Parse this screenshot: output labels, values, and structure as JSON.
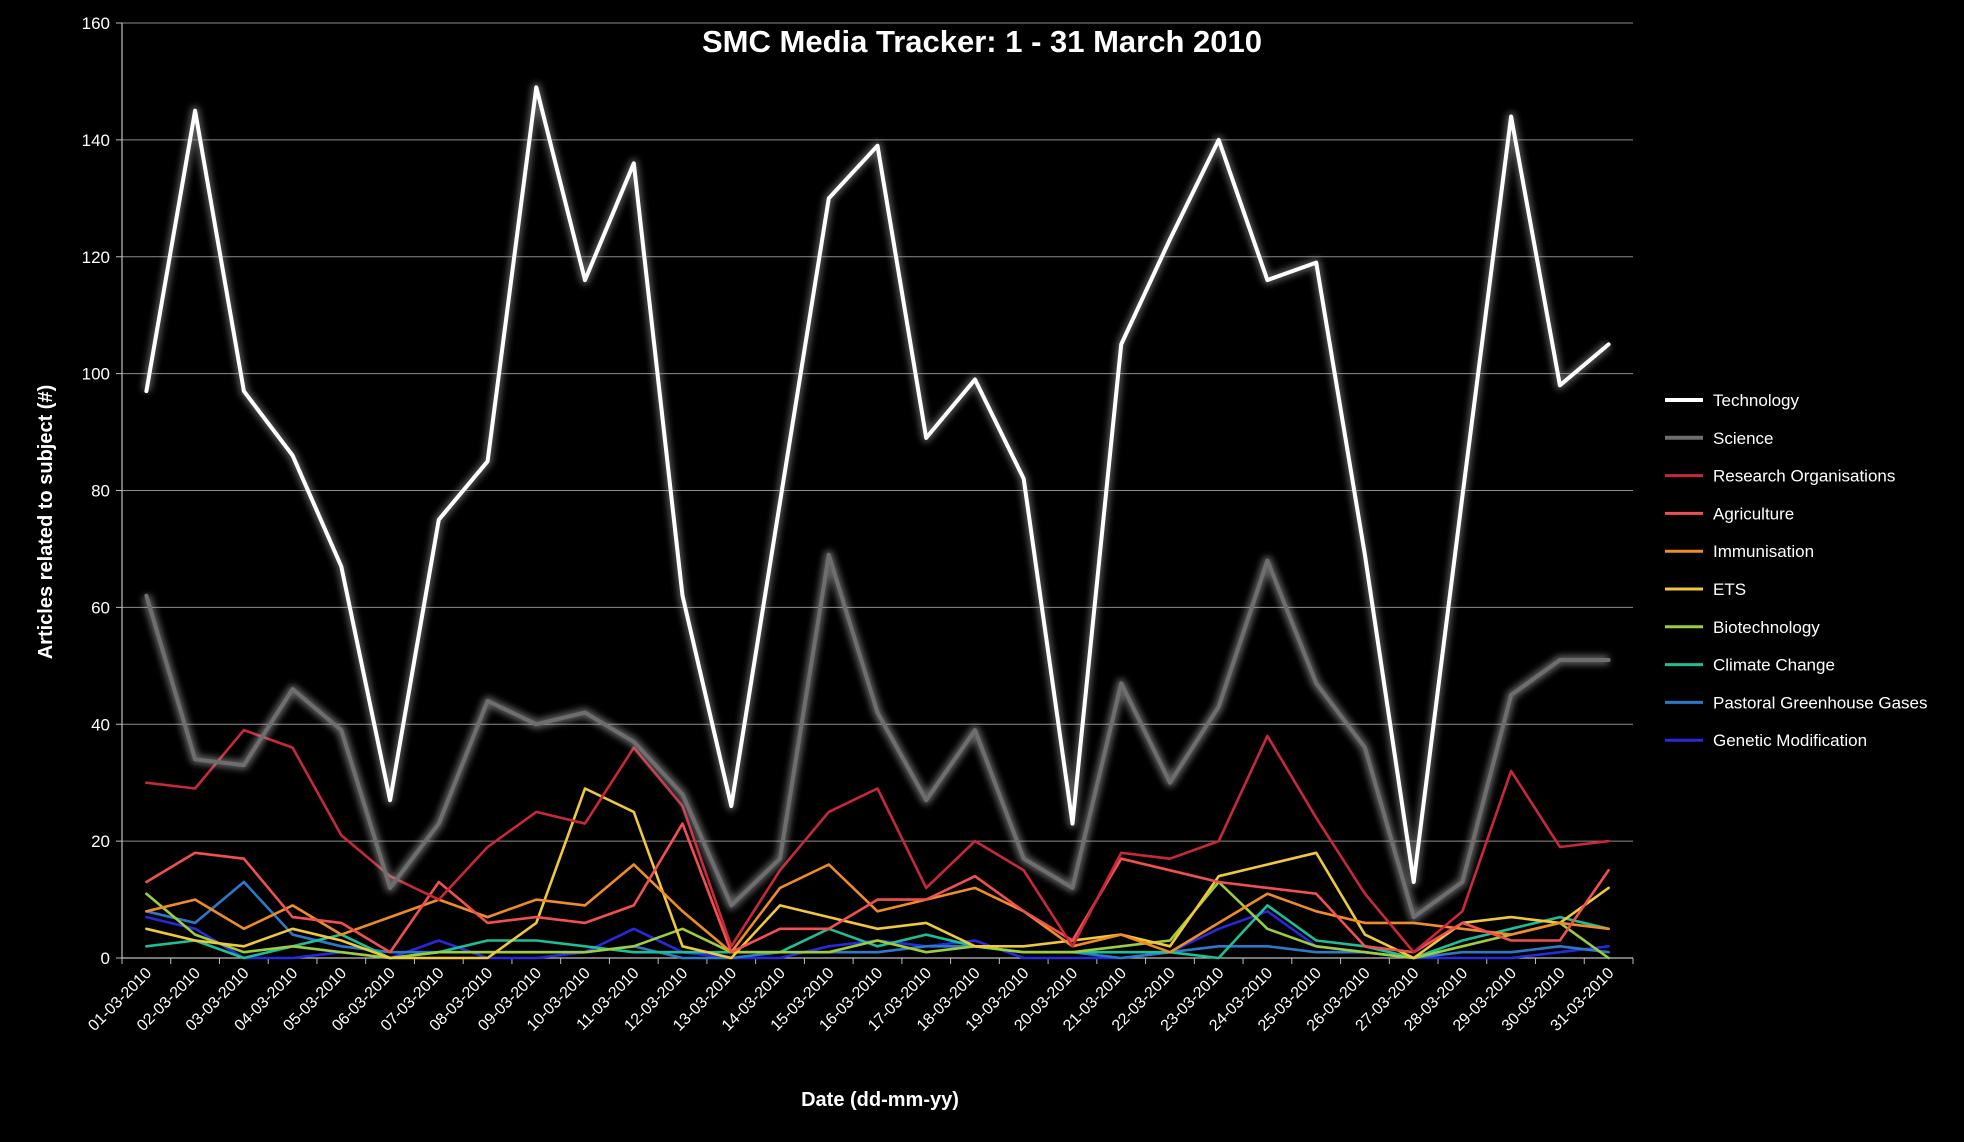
{
  "chart_data": {
    "type": "line",
    "title": "SMC Media Tracker: 1 - 31 March 2010",
    "xlabel": "Date (dd-mm-yy)",
    "ylabel": "Articles related to subject (#)",
    "ylim": [
      0,
      160
    ],
    "yticks": [
      0,
      20,
      40,
      60,
      80,
      100,
      120,
      140,
      160
    ],
    "grid": true,
    "legend_position": "right",
    "categories": [
      "01-03-2010",
      "02-03-2010",
      "03-03-2010",
      "04-03-2010",
      "05-03-2010",
      "06-03-2010",
      "07-03-2010",
      "08-03-2010",
      "09-03-2010",
      "10-03-2010",
      "11-03-2010",
      "12-03-2010",
      "13-03-2010",
      "14-03-2010",
      "15-03-2010",
      "16-03-2010",
      "17-03-2010",
      "18-03-2010",
      "19-03-2010",
      "20-03-2010",
      "21-03-2010",
      "22-03-2010",
      "23-03-2010",
      "24-03-2010",
      "25-03-2010",
      "26-03-2010",
      "27-03-2010",
      "28-03-2010",
      "29-03-2010",
      "30-03-2010",
      "31-03-2010"
    ],
    "series": [
      {
        "name": "Technology",
        "color": "#ffffff",
        "glow": true,
        "values": [
          97,
          145,
          97,
          86,
          67,
          27,
          75,
          85,
          149,
          116,
          136,
          62,
          26,
          78,
          130,
          139,
          89,
          99,
          82,
          23,
          105,
          123,
          140,
          116,
          119,
          69,
          13,
          79,
          144,
          98,
          105
        ]
      },
      {
        "name": "Science",
        "color": "#6e6e6e",
        "glow": true,
        "values": [
          62,
          34,
          33,
          46,
          39,
          12,
          23,
          44,
          40,
          42,
          37,
          28,
          9,
          17,
          69,
          42,
          27,
          39,
          17,
          12,
          47,
          30,
          43,
          68,
          47,
          36,
          7,
          13,
          45,
          51,
          51
        ]
      },
      {
        "name": "Research Organisations",
        "color": "#c8283c",
        "glow": false,
        "values": [
          30,
          29,
          39,
          36,
          21,
          14,
          10,
          19,
          25,
          23,
          36,
          26,
          2,
          15,
          25,
          29,
          12,
          20,
          15,
          2,
          18,
          17,
          20,
          38,
          24,
          11,
          1,
          8,
          32,
          19,
          20
        ]
      },
      {
        "name": "Agriculture",
        "color": "#f05050",
        "glow": false,
        "values": [
          13,
          18,
          17,
          7,
          6,
          1,
          13,
          6,
          7,
          6,
          9,
          23,
          1,
          5,
          5,
          10,
          10,
          14,
          8,
          3,
          17,
          15,
          13,
          12,
          11,
          2,
          1,
          6,
          3,
          3,
          15
        ]
      },
      {
        "name": "Immunisation",
        "color": "#f08c28",
        "glow": false,
        "values": [
          8,
          10,
          5,
          9,
          4,
          7,
          10,
          7,
          10,
          9,
          16,
          8,
          1,
          12,
          16,
          8,
          10,
          12,
          8,
          2,
          4,
          1,
          6,
          11,
          8,
          6,
          6,
          5,
          4,
          6,
          5
        ]
      },
      {
        "name": "ETS",
        "color": "#f0c83c",
        "glow": false,
        "values": [
          5,
          3,
          2,
          5,
          3,
          0,
          0,
          0,
          6,
          29,
          25,
          2,
          0,
          9,
          7,
          5,
          6,
          2,
          2,
          3,
          4,
          2,
          14,
          16,
          18,
          4,
          0,
          6,
          7,
          6,
          12
        ]
      },
      {
        "name": "Biotechnology",
        "color": "#9ccd3c",
        "glow": false,
        "values": [
          11,
          4,
          1,
          2,
          1,
          0,
          1,
          1,
          1,
          1,
          2,
          5,
          1,
          1,
          1,
          3,
          1,
          2,
          1,
          1,
          2,
          3,
          13,
          5,
          2,
          1,
          0,
          2,
          4,
          6,
          0
        ]
      },
      {
        "name": "Climate Change",
        "color": "#1ebe96",
        "glow": false,
        "values": [
          2,
          3,
          0,
          2,
          4,
          0,
          1,
          3,
          3,
          2,
          1,
          1,
          1,
          1,
          5,
          2,
          4,
          2,
          1,
          1,
          1,
          1,
          0,
          9,
          3,
          2,
          0,
          3,
          5,
          7,
          5
        ]
      },
      {
        "name": "Pastoral Greenhouse Gases",
        "color": "#2e78c8",
        "glow": false,
        "values": [
          8,
          6,
          13,
          4,
          2,
          1,
          1,
          1,
          1,
          1,
          2,
          0,
          0,
          1,
          1,
          1,
          2,
          2,
          1,
          1,
          0,
          1,
          2,
          2,
          1,
          1,
          0,
          1,
          1,
          2,
          1
        ]
      },
      {
        "name": "Genetic Modification",
        "color": "#2828dc",
        "glow": false,
        "values": [
          7,
          5,
          0,
          0,
          1,
          0,
          3,
          0,
          0,
          1,
          5,
          1,
          0,
          0,
          2,
          3,
          2,
          3,
          0,
          0,
          0,
          1,
          5,
          8,
          2,
          1,
          0,
          0,
          0,
          1,
          2
        ]
      }
    ]
  }
}
